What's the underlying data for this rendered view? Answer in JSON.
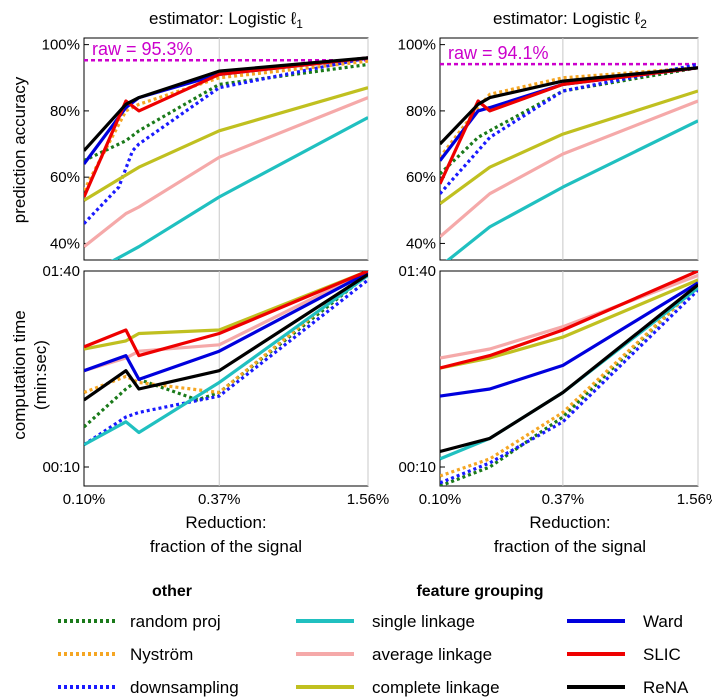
{
  "figure": {
    "title_left": "estimator: Logistic ℓ",
    "title_left_sub": "1",
    "title_right": "estimator: Logistic ℓ",
    "title_right_sub": "2",
    "ylabel_top": "prediction accuracy",
    "ylabel_bottom_line1": "computation time",
    "ylabel_bottom_line2": "(min:sec)",
    "xlabel_line1": "Reduction:",
    "xlabel_line2": "fraction of the signal",
    "acc_ticks": [
      "40%",
      "60%",
      "80%",
      "100%"
    ],
    "time_ticks": [
      "00:10",
      "01:40"
    ],
    "x_ticks": [
      "0.10%",
      "0.37%",
      "1.56%"
    ]
  },
  "legend": {
    "other_title": "other",
    "grouping_title": "feature grouping",
    "other": [
      {
        "key": "random_proj",
        "label": "random proj"
      },
      {
        "key": "nystrom",
        "label": "Nyström"
      },
      {
        "key": "downsampling",
        "label": "downsampling"
      }
    ],
    "grouping_col1": [
      {
        "key": "single",
        "label": "single linkage"
      },
      {
        "key": "average",
        "label": "average linkage"
      },
      {
        "key": "complete",
        "label": "complete linkage"
      }
    ],
    "grouping_col2": [
      {
        "key": "ward",
        "label": "Ward"
      },
      {
        "key": "slic",
        "label": "SLIC"
      },
      {
        "key": "rena",
        "label": "ReNA"
      }
    ]
  },
  "styles": {
    "random_proj": {
      "color": "#1a7a1a",
      "dashed": true
    },
    "nystrom": {
      "color": "#f5a623",
      "dashed": true
    },
    "downsampling": {
      "color": "#1a1aff",
      "dashed": true
    },
    "single": {
      "color": "#20c0c0",
      "dashed": false
    },
    "average": {
      "color": "#f5a9a9",
      "dashed": false
    },
    "complete": {
      "color": "#c0c020",
      "dashed": false
    },
    "ward": {
      "color": "#0000dd",
      "dashed": false
    },
    "slic": {
      "color": "#ee0000",
      "dashed": false
    },
    "rena": {
      "color": "#000000",
      "dashed": false
    },
    "raw": {
      "color": "#cc00cc"
    }
  },
  "chart_data": [
    {
      "type": "line",
      "panel": "accuracy-l1",
      "title": "estimator: Logistic ℓ1",
      "ylabel": "prediction accuracy",
      "xscale": "log",
      "xlim": [
        0.1,
        1.56
      ],
      "ylim": [
        35,
        102
      ],
      "reference": {
        "label": "raw = 95.3%",
        "value": 95.3
      },
      "series": [
        {
          "key": "random_proj",
          "points": [
            [
              0.1,
              65
            ],
            [
              0.15,
              71
            ],
            [
              0.17,
              74
            ],
            [
              0.37,
              88
            ],
            [
              1.56,
              94
            ]
          ]
        },
        {
          "key": "nystrom",
          "points": [
            [
              0.1,
              56
            ],
            [
              0.15,
              80
            ],
            [
              0.17,
              82
            ],
            [
              0.37,
              90
            ],
            [
              1.56,
              95
            ]
          ]
        },
        {
          "key": "downsampling",
          "points": [
            [
              0.1,
              46
            ],
            [
              0.14,
              57
            ],
            [
              0.16,
              68
            ],
            [
              0.17,
              70
            ],
            [
              0.37,
              87
            ],
            [
              1.56,
              96
            ]
          ]
        },
        {
          "key": "single",
          "points": [
            [
              0.1,
              30
            ],
            [
              0.17,
              39
            ],
            [
              0.37,
              54
            ],
            [
              1.56,
              78
            ]
          ]
        },
        {
          "key": "average",
          "points": [
            [
              0.1,
              39
            ],
            [
              0.15,
              49
            ],
            [
              0.17,
              51
            ],
            [
              0.37,
              66
            ],
            [
              1.56,
              84
            ]
          ]
        },
        {
          "key": "complete",
          "points": [
            [
              0.1,
              53
            ],
            [
              0.17,
              63
            ],
            [
              0.37,
              74
            ],
            [
              1.56,
              87
            ]
          ]
        },
        {
          "key": "ward",
          "points": [
            [
              0.1,
              64
            ],
            [
              0.15,
              81
            ],
            [
              0.17,
              84
            ],
            [
              0.37,
              91
            ],
            [
              1.56,
              96
            ]
          ]
        },
        {
          "key": "slic",
          "points": [
            [
              0.1,
              54
            ],
            [
              0.15,
              83
            ],
            [
              0.17,
              80
            ],
            [
              0.37,
              91
            ],
            [
              1.56,
              96
            ]
          ]
        },
        {
          "key": "rena",
          "points": [
            [
              0.1,
              68
            ],
            [
              0.15,
              82
            ],
            [
              0.17,
              84
            ],
            [
              0.37,
              92
            ],
            [
              1.56,
              96
            ]
          ]
        }
      ]
    },
    {
      "type": "line",
      "panel": "accuracy-l2",
      "title": "estimator: Logistic ℓ2",
      "xscale": "log",
      "xlim": [
        0.1,
        1.56
      ],
      "ylim": [
        35,
        102
      ],
      "reference": {
        "label": "raw = 94.1%",
        "value": 94.1
      },
      "series": [
        {
          "key": "random_proj",
          "points": [
            [
              0.1,
              61
            ],
            [
              0.15,
              72
            ],
            [
              0.17,
              74
            ],
            [
              0.37,
              86
            ],
            [
              1.56,
              93
            ]
          ]
        },
        {
          "key": "nystrom",
          "points": [
            [
              0.1,
              66
            ],
            [
              0.15,
              81
            ],
            [
              0.17,
              85
            ],
            [
              0.37,
              90
            ],
            [
              1.56,
              93
            ]
          ]
        },
        {
          "key": "downsampling",
          "points": [
            [
              0.1,
              55
            ],
            [
              0.15,
              68
            ],
            [
              0.17,
              72
            ],
            [
              0.37,
              86
            ],
            [
              1.56,
              94
            ]
          ]
        },
        {
          "key": "single",
          "points": [
            [
              0.1,
              33
            ],
            [
              0.17,
              45
            ],
            [
              0.37,
              57
            ],
            [
              1.56,
              77
            ]
          ]
        },
        {
          "key": "average",
          "points": [
            [
              0.1,
              42
            ],
            [
              0.17,
              55
            ],
            [
              0.37,
              67
            ],
            [
              1.56,
              83
            ]
          ]
        },
        {
          "key": "complete",
          "points": [
            [
              0.1,
              52
            ],
            [
              0.17,
              63
            ],
            [
              0.37,
              73
            ],
            [
              1.56,
              86
            ]
          ]
        },
        {
          "key": "ward",
          "points": [
            [
              0.1,
              65
            ],
            [
              0.15,
              80
            ],
            [
              0.17,
              81
            ],
            [
              0.37,
              88
            ],
            [
              1.56,
              93
            ]
          ]
        },
        {
          "key": "slic",
          "points": [
            [
              0.1,
              58
            ],
            [
              0.15,
              83
            ],
            [
              0.17,
              80
            ],
            [
              0.37,
              88
            ],
            [
              1.56,
              93
            ]
          ]
        },
        {
          "key": "rena",
          "points": [
            [
              0.1,
              70
            ],
            [
              0.15,
              82
            ],
            [
              0.17,
              84
            ],
            [
              0.37,
              89
            ],
            [
              1.56,
              93
            ]
          ]
        }
      ]
    },
    {
      "type": "line",
      "panel": "time-l1",
      "ylabel": "computation time (min:sec)",
      "xscale": "log",
      "yscale": "log",
      "xlim": [
        0.1,
        1.56
      ],
      "ylim_seconds": [
        8,
        100
      ],
      "series": [
        {
          "key": "random_proj",
          "points": [
            [
              0.1,
              16
            ],
            [
              0.15,
              25
            ],
            [
              0.17,
              28
            ],
            [
              0.3,
              22
            ],
            [
              0.37,
              24
            ],
            [
              1.56,
              96
            ]
          ]
        },
        {
          "key": "nystrom",
          "points": [
            [
              0.1,
              24
            ],
            [
              0.15,
              29
            ],
            [
              0.17,
              27
            ],
            [
              0.37,
              24
            ],
            [
              1.56,
              100
            ]
          ]
        },
        {
          "key": "downsampling",
          "points": [
            [
              0.1,
              13
            ],
            [
              0.15,
              18
            ],
            [
              0.17,
              19
            ],
            [
              0.37,
              23
            ],
            [
              1.56,
              90
            ]
          ]
        },
        {
          "key": "single",
          "points": [
            [
              0.1,
              13
            ],
            [
              0.15,
              17
            ],
            [
              0.17,
              15
            ],
            [
              0.37,
              27
            ],
            [
              1.56,
              95
            ]
          ]
        },
        {
          "key": "average",
          "points": [
            [
              0.1,
              31
            ],
            [
              0.15,
              36
            ],
            [
              0.17,
              39
            ],
            [
              0.37,
              42
            ],
            [
              1.56,
              100
            ]
          ]
        },
        {
          "key": "complete",
          "points": [
            [
              0.1,
              40
            ],
            [
              0.15,
              44
            ],
            [
              0.17,
              48
            ],
            [
              0.37,
              50
            ],
            [
              1.56,
              100
            ]
          ]
        },
        {
          "key": "ward",
          "points": [
            [
              0.1,
              31
            ],
            [
              0.15,
              37
            ],
            [
              0.17,
              28
            ],
            [
              0.37,
              39
            ],
            [
              1.56,
              98
            ]
          ]
        },
        {
          "key": "slic",
          "points": [
            [
              0.1,
              41
            ],
            [
              0.15,
              50
            ],
            [
              0.17,
              37
            ],
            [
              0.37,
              48
            ],
            [
              1.56,
              100
            ]
          ]
        },
        {
          "key": "rena",
          "points": [
            [
              0.1,
              22
            ],
            [
              0.15,
              31
            ],
            [
              0.17,
              25
            ],
            [
              0.37,
              31
            ],
            [
              1.56,
              96
            ]
          ]
        }
      ]
    },
    {
      "type": "line",
      "panel": "time-l2",
      "xscale": "log",
      "yscale": "log",
      "xlim": [
        0.1,
        1.56
      ],
      "ylim_seconds": [
        8,
        100
      ],
      "series": [
        {
          "key": "random_proj",
          "points": [
            [
              0.1,
              8
            ],
            [
              0.17,
              10
            ],
            [
              0.37,
              18
            ],
            [
              1.56,
              85
            ]
          ]
        },
        {
          "key": "nystrom",
          "points": [
            [
              0.1,
              9
            ],
            [
              0.17,
              11
            ],
            [
              0.37,
              19
            ],
            [
              1.56,
              84
            ]
          ]
        },
        {
          "key": "downsampling",
          "points": [
            [
              0.1,
              8.3
            ],
            [
              0.17,
              10.5
            ],
            [
              0.37,
              17
            ],
            [
              1.56,
              80
            ]
          ]
        },
        {
          "key": "single",
          "points": [
            [
              0.1,
              11
            ],
            [
              0.17,
              14
            ],
            [
              0.37,
              24
            ],
            [
              1.56,
              82
            ]
          ]
        },
        {
          "key": "average",
          "points": [
            [
              0.1,
              36
            ],
            [
              0.17,
              40
            ],
            [
              0.37,
              52
            ],
            [
              1.56,
              95
            ]
          ]
        },
        {
          "key": "complete",
          "points": [
            [
              0.1,
              32
            ],
            [
              0.17,
              36
            ],
            [
              0.37,
              46
            ],
            [
              1.56,
              90
            ]
          ]
        },
        {
          "key": "ward",
          "points": [
            [
              0.1,
              23
            ],
            [
              0.17,
              25
            ],
            [
              0.37,
              33
            ],
            [
              1.56,
              87
            ]
          ]
        },
        {
          "key": "slic",
          "points": [
            [
              0.1,
              32
            ],
            [
              0.17,
              37
            ],
            [
              0.37,
              50
            ],
            [
              1.56,
              100
            ]
          ]
        },
        {
          "key": "rena",
          "points": [
            [
              0.1,
              12
            ],
            [
              0.17,
              14
            ],
            [
              0.37,
              24
            ],
            [
              1.56,
              85
            ]
          ]
        }
      ]
    }
  ]
}
